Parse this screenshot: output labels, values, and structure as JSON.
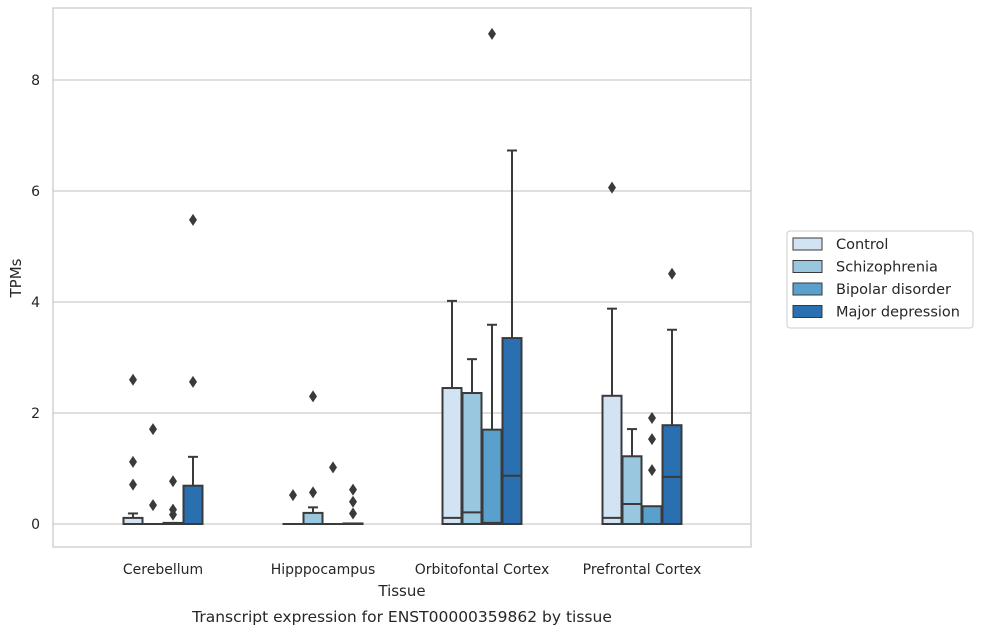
{
  "chart_data": {
    "type": "box",
    "caption": "Transcript expression for ENST00000359862 by tissue",
    "xlabel": "Tissue",
    "ylabel": "TPMs",
    "ylim": [
      -0.42,
      9.3
    ],
    "yticks": [
      0,
      2,
      4,
      6,
      8
    ],
    "grid": "horizontal",
    "legend_position": "right",
    "categories": [
      "Cerebellum",
      "Hipppocampus",
      "Orbitofontal Cortex",
      "Prefrontal Cortex"
    ],
    "series": [
      {
        "name": "Control",
        "color": "#d2e3f3",
        "boxes": [
          {
            "whislo": 0,
            "q1": 0,
            "med": 0,
            "q3": 0.11,
            "whishi": 0.19,
            "fliers": [
              0.71,
              1.12,
              2.6
            ]
          },
          {
            "whislo": 0,
            "q1": 0,
            "med": 0,
            "q3": 0,
            "whishi": 0,
            "fliers": [
              0.52
            ]
          },
          {
            "whislo": 0,
            "q1": 0,
            "med": 0.11,
            "q3": 2.45,
            "whishi": 4.02,
            "fliers": []
          },
          {
            "whislo": 0,
            "q1": 0,
            "med": 0.11,
            "q3": 2.31,
            "whishi": 3.88,
            "fliers": [
              6.06
            ]
          }
        ]
      },
      {
        "name": "Schizophrenia",
        "color": "#9ac7e0",
        "boxes": [
          {
            "whislo": 0,
            "q1": 0,
            "med": 0,
            "q3": 0,
            "whishi": 0,
            "fliers": [
              0.34,
              1.71
            ]
          },
          {
            "whislo": 0,
            "q1": 0,
            "med": 0,
            "q3": 0.2,
            "whishi": 0.3,
            "fliers": [
              0.57,
              2.3
            ]
          },
          {
            "whislo": 0,
            "q1": 0,
            "med": 0.21,
            "q3": 2.36,
            "whishi": 2.97,
            "fliers": []
          },
          {
            "whislo": 0,
            "q1": 0,
            "med": 0.36,
            "q3": 1.22,
            "whishi": 1.71,
            "fliers": []
          }
        ]
      },
      {
        "name": "Bipolar disorder",
        "color": "#5aa0cd",
        "boxes": [
          {
            "whislo": 0,
            "q1": 0,
            "med": 0,
            "q3": 0.02,
            "whishi": 0.02,
            "fliers": [
              0.17,
              0.26,
              0.77
            ]
          },
          {
            "whislo": 0,
            "q1": 0,
            "med": 0,
            "q3": 0,
            "whishi": 0,
            "fliers": [
              1.02
            ]
          },
          {
            "whislo": 0,
            "q1": 0,
            "med": 0.02,
            "q3": 1.7,
            "whishi": 3.59,
            "fliers": [
              8.83
            ]
          },
          {
            "whislo": 0,
            "q1": 0,
            "med": 0,
            "q3": 0.32,
            "whishi": 0.32,
            "fliers": [
              0.97,
              1.53,
              1.91
            ]
          }
        ]
      },
      {
        "name": "Major depression",
        "color": "#2a6fb0",
        "boxes": [
          {
            "whislo": 0,
            "q1": 0,
            "med": 0,
            "q3": 0.69,
            "whishi": 1.21,
            "fliers": [
              2.56,
              5.48
            ]
          },
          {
            "whislo": 0,
            "q1": 0,
            "med": 0,
            "q3": 0.01,
            "whishi": 0.01,
            "fliers": [
              0.19,
              0.4,
              0.62
            ]
          },
          {
            "whislo": 0,
            "q1": 0,
            "med": 0.87,
            "q3": 3.35,
            "whishi": 6.73,
            "fliers": []
          },
          {
            "whislo": 0,
            "q1": 0,
            "med": 0.85,
            "q3": 1.78,
            "whishi": 3.5,
            "fliers": [
              4.51
            ]
          }
        ]
      }
    ]
  }
}
